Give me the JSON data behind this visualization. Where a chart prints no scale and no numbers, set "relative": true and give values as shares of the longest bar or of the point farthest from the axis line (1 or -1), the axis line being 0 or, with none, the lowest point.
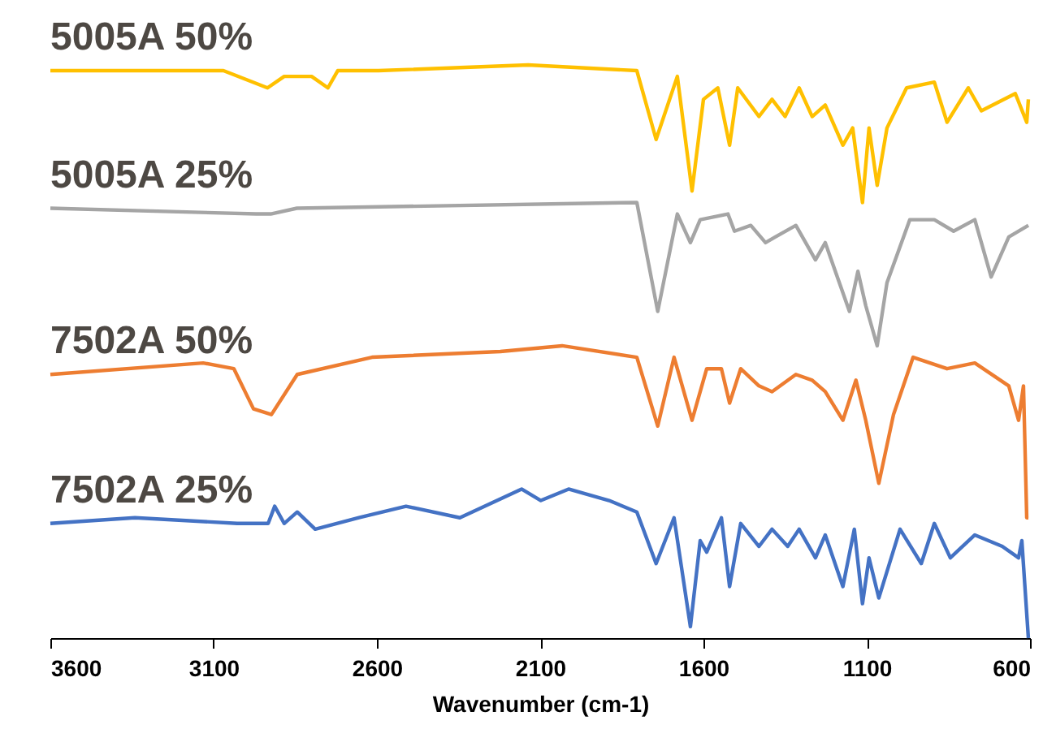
{
  "chart_data": {
    "type": "line",
    "relative": true,
    "xlabel": "Wavenumber (cm-1)",
    "xlim": [
      3600,
      600
    ],
    "xticks": [
      3600,
      3100,
      2600,
      2100,
      1600,
      1100,
      600
    ],
    "series": [
      {
        "name": "5005A 50%",
        "color": "#ffc000",
        "x": [
          3600,
          3070,
          2935,
          2884,
          2800,
          2750,
          2720,
          2595,
          2137,
          1804,
          1745,
          1680,
          1635,
          1600,
          1556,
          1520,
          1495,
          1430,
          1390,
          1350,
          1307,
          1267,
          1227,
          1173,
          1143,
          1113,
          1093,
          1068,
          1038,
          978,
          893,
          854,
          789,
          749,
          645,
          610,
          605
        ],
        "values": [
          0.99,
          0.99,
          0.96,
          0.98,
          0.98,
          0.96,
          0.99,
          0.99,
          1.0,
          0.99,
          0.87,
          0.98,
          0.78,
          0.94,
          0.96,
          0.86,
          0.96,
          0.91,
          0.94,
          0.91,
          0.96,
          0.91,
          0.93,
          0.86,
          0.89,
          0.76,
          0.89,
          0.79,
          0.89,
          0.96,
          0.97,
          0.9,
          0.96,
          0.92,
          0.95,
          0.9,
          0.94
        ]
      },
      {
        "name": "5005A 25%",
        "color": "#a5a5a5",
        "x": [
          3600,
          2970,
          2925,
          2845,
          1804,
          1740,
          1680,
          1640,
          1610,
          1525,
          1505,
          1455,
          1410,
          1380,
          1317,
          1257,
          1227,
          1153,
          1127,
          1103,
          1068,
          1038,
          968,
          893,
          834,
          769,
          719,
          665,
          605
        ],
        "values": [
          0.75,
          0.74,
          0.74,
          0.75,
          0.76,
          0.57,
          0.74,
          0.69,
          0.73,
          0.74,
          0.71,
          0.72,
          0.69,
          0.7,
          0.72,
          0.66,
          0.69,
          0.57,
          0.64,
          0.58,
          0.51,
          0.62,
          0.73,
          0.73,
          0.71,
          0.73,
          0.63,
          0.7,
          0.72
        ]
      },
      {
        "name": "7502A 50%",
        "color": "#ed7d31",
        "x": [
          3600,
          3132,
          3038,
          2978,
          2923,
          2844,
          2615,
          2222,
          2033,
          1804,
          1740,
          1690,
          1635,
          1590,
          1545,
          1520,
          1486,
          1430,
          1390,
          1317,
          1267,
          1227,
          1173,
          1133,
          1103,
          1063,
          1018,
          958,
          854,
          769,
          665,
          635,
          620,
          610,
          605
        ],
        "values": [
          0.46,
          0.48,
          0.47,
          0.4,
          0.39,
          0.46,
          0.49,
          0.5,
          0.51,
          0.49,
          0.37,
          0.49,
          0.38,
          0.47,
          0.47,
          0.41,
          0.47,
          0.44,
          0.43,
          0.46,
          0.45,
          0.43,
          0.38,
          0.45,
          0.38,
          0.27,
          0.39,
          0.49,
          0.47,
          0.48,
          0.44,
          0.38,
          0.44,
          0.21,
          0.21
        ]
      },
      {
        "name": "7502A 25%",
        "color": "#4472c4",
        "x": [
          3600,
          3341,
          3028,
          2933,
          2913,
          2884,
          2844,
          2789,
          2655,
          2511,
          2346,
          2157,
          2098,
          2013,
          1889,
          1804,
          1745,
          1690,
          1640,
          1610,
          1590,
          1545,
          1520,
          1486,
          1430,
          1390,
          1342,
          1307,
          1257,
          1227,
          1173,
          1138,
          1113,
          1093,
          1063,
          998,
          933,
          893,
          844,
          769,
          685,
          635,
          625,
          605
        ],
        "values": [
          0.2,
          0.21,
          0.2,
          0.2,
          0.23,
          0.2,
          0.22,
          0.19,
          0.21,
          0.23,
          0.21,
          0.26,
          0.24,
          0.26,
          0.24,
          0.22,
          0.13,
          0.21,
          0.02,
          0.17,
          0.15,
          0.21,
          0.09,
          0.2,
          0.16,
          0.19,
          0.16,
          0.19,
          0.14,
          0.18,
          0.09,
          0.19,
          0.06,
          0.14,
          0.07,
          0.19,
          0.13,
          0.2,
          0.14,
          0.18,
          0.16,
          0.14,
          0.17,
          0.0
        ]
      }
    ]
  }
}
